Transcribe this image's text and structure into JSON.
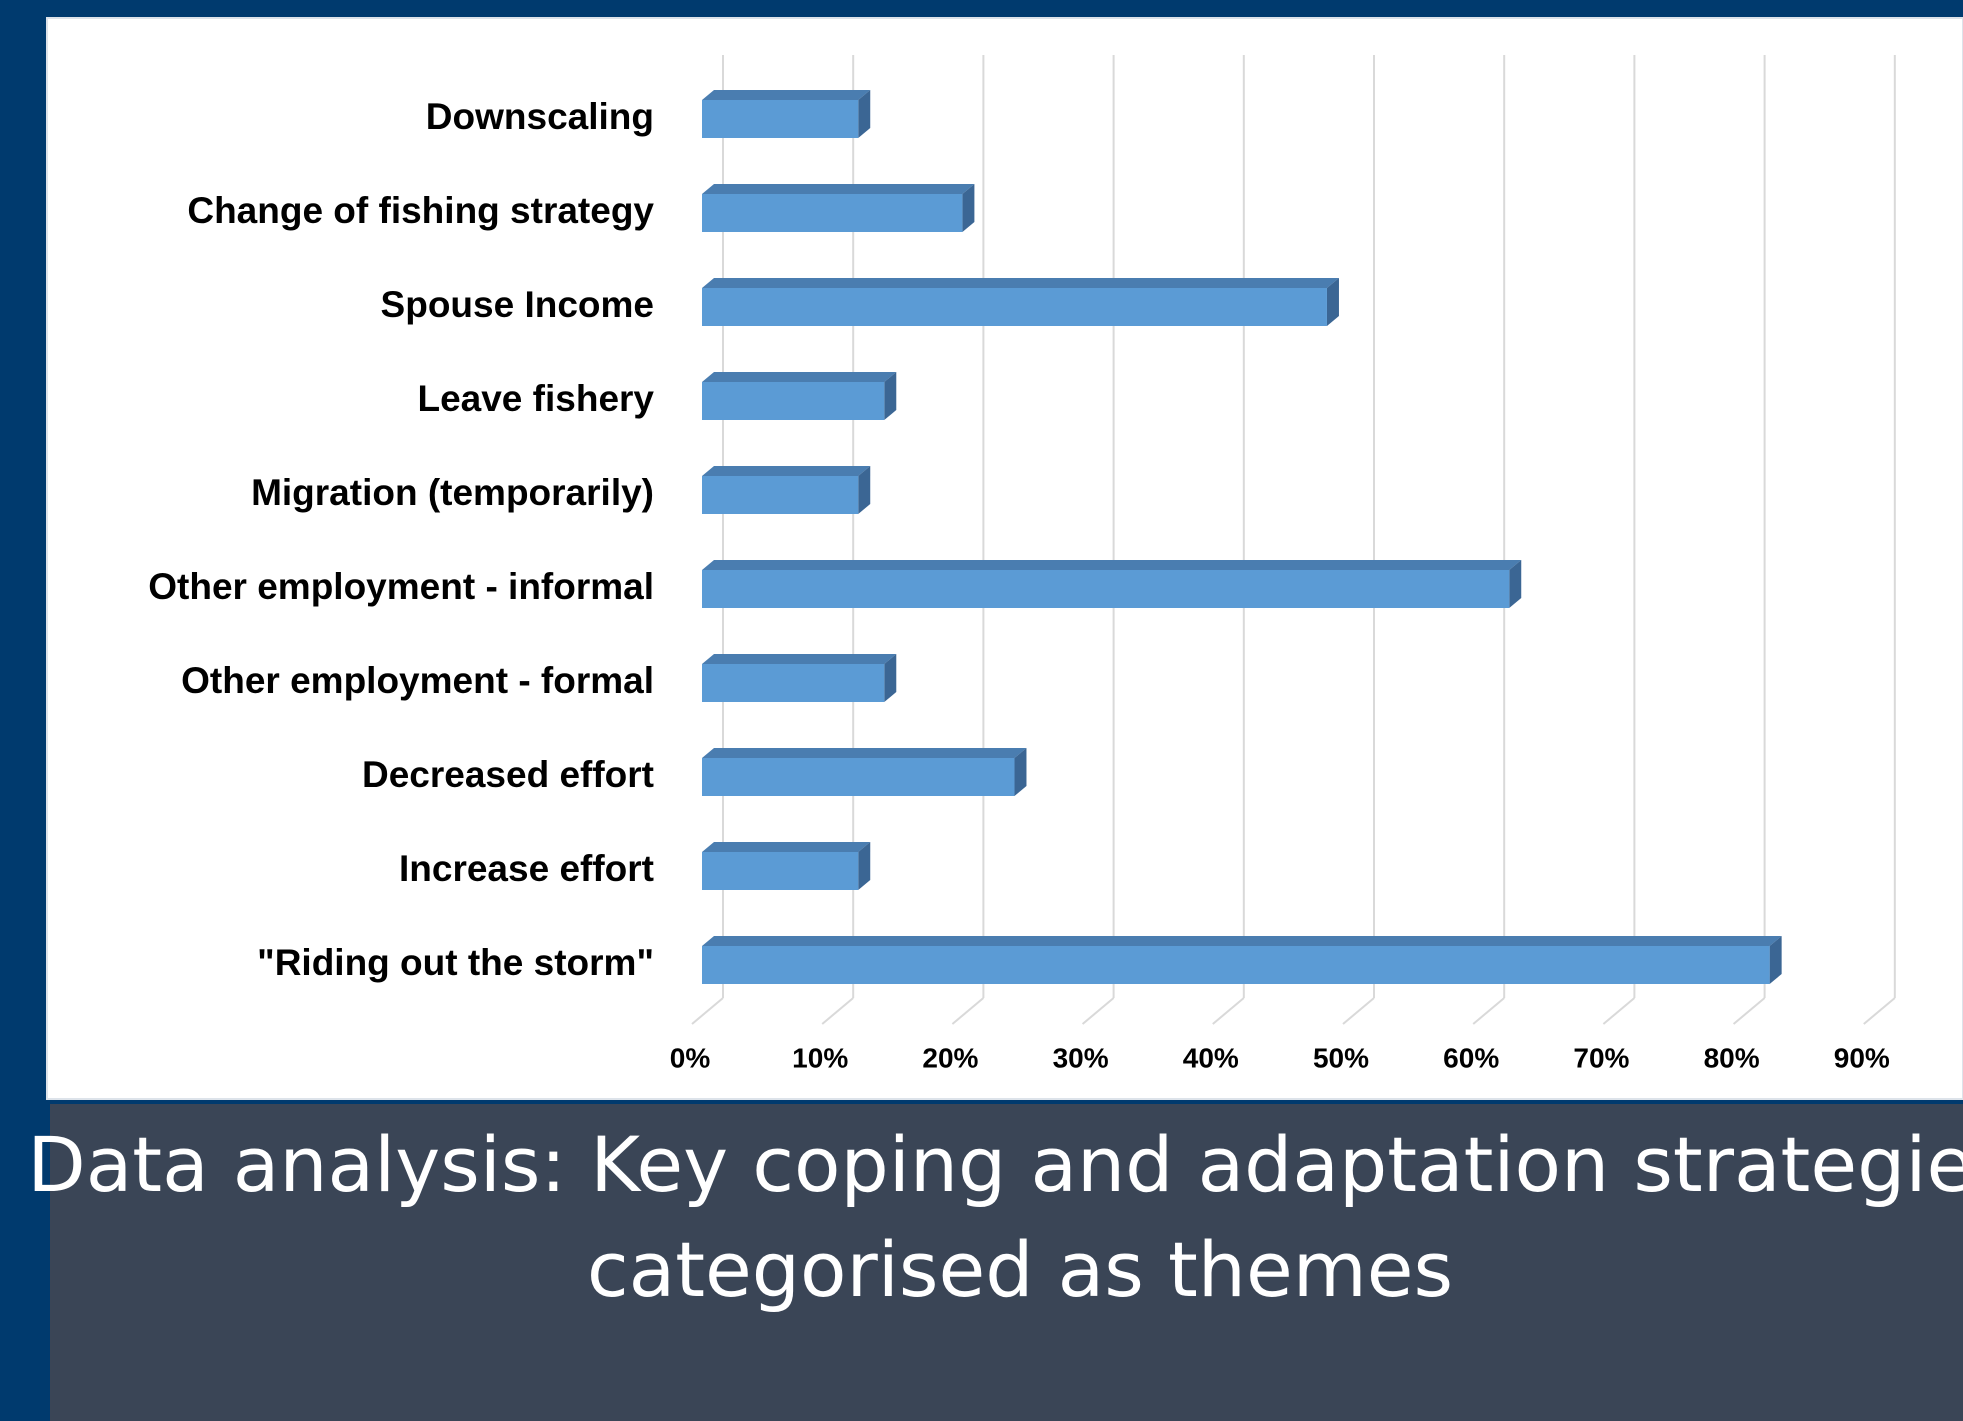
{
  "chart_data": {
    "type": "bar",
    "orientation": "horizontal",
    "title": [
      "Data analysis: Key coping and adaptation strategies",
      "categorised as themes"
    ],
    "categories": [
      "Downscaling",
      "Change of fishing strategy",
      "Spouse Income",
      "Leave fishery",
      "Migration (temporarily)",
      "Other employment - informal",
      "Other employment - formal",
      "Decreased effort",
      "Increase effort",
      "\"Riding out the storm\""
    ],
    "values": [
      12,
      20,
      48,
      14,
      12,
      62,
      14,
      24,
      12,
      82
    ],
    "color": "#5b9bd5",
    "xlim": [
      0,
      90
    ],
    "xticks": [
      {
        "value": 0,
        "label": "0%"
      },
      {
        "value": 10,
        "label": "10%"
      },
      {
        "value": 20,
        "label": "20%"
      },
      {
        "value": 30,
        "label": "30%"
      },
      {
        "value": 40,
        "label": "40%"
      },
      {
        "value": 50,
        "label": "50%"
      },
      {
        "value": 60,
        "label": "60%"
      },
      {
        "value": 70,
        "label": "70%"
      },
      {
        "value": 80,
        "label": "80%"
      },
      {
        "value": 90,
        "label": "90%"
      }
    ],
    "grid": true
  }
}
